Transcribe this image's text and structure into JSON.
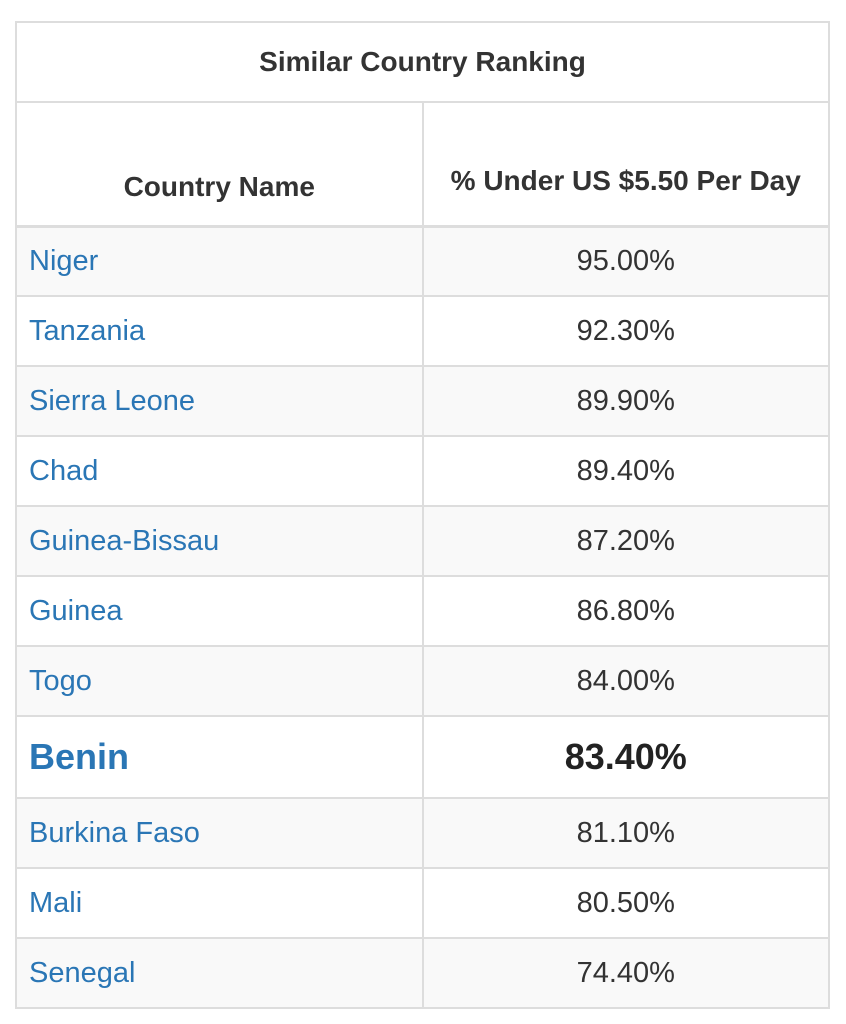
{
  "table": {
    "caption": "Similar Country Ranking",
    "headers": {
      "country": "Country Name",
      "percent": "% Under US $5.50 Per Day"
    },
    "rows": [
      {
        "country": "Niger",
        "percent": "95.00%"
      },
      {
        "country": "Tanzania",
        "percent": "92.30%"
      },
      {
        "country": "Sierra Leone",
        "percent": "89.90%"
      },
      {
        "country": "Chad",
        "percent": "89.40%"
      },
      {
        "country": "Guinea-Bissau",
        "percent": "87.20%"
      },
      {
        "country": "Guinea",
        "percent": "86.80%"
      },
      {
        "country": "Togo",
        "percent": "84.00%"
      },
      {
        "country": "Benin",
        "percent": "83.40%"
      },
      {
        "country": "Burkina Faso",
        "percent": "81.10%"
      },
      {
        "country": "Mali",
        "percent": "80.50%"
      },
      {
        "country": "Senegal",
        "percent": "74.40%"
      }
    ],
    "highlighted_country": "Benin"
  },
  "colors": {
    "link": "#2a76b5",
    "border": "#dddddd",
    "stripe": "#f9f9f9",
    "text": "#333333"
  }
}
